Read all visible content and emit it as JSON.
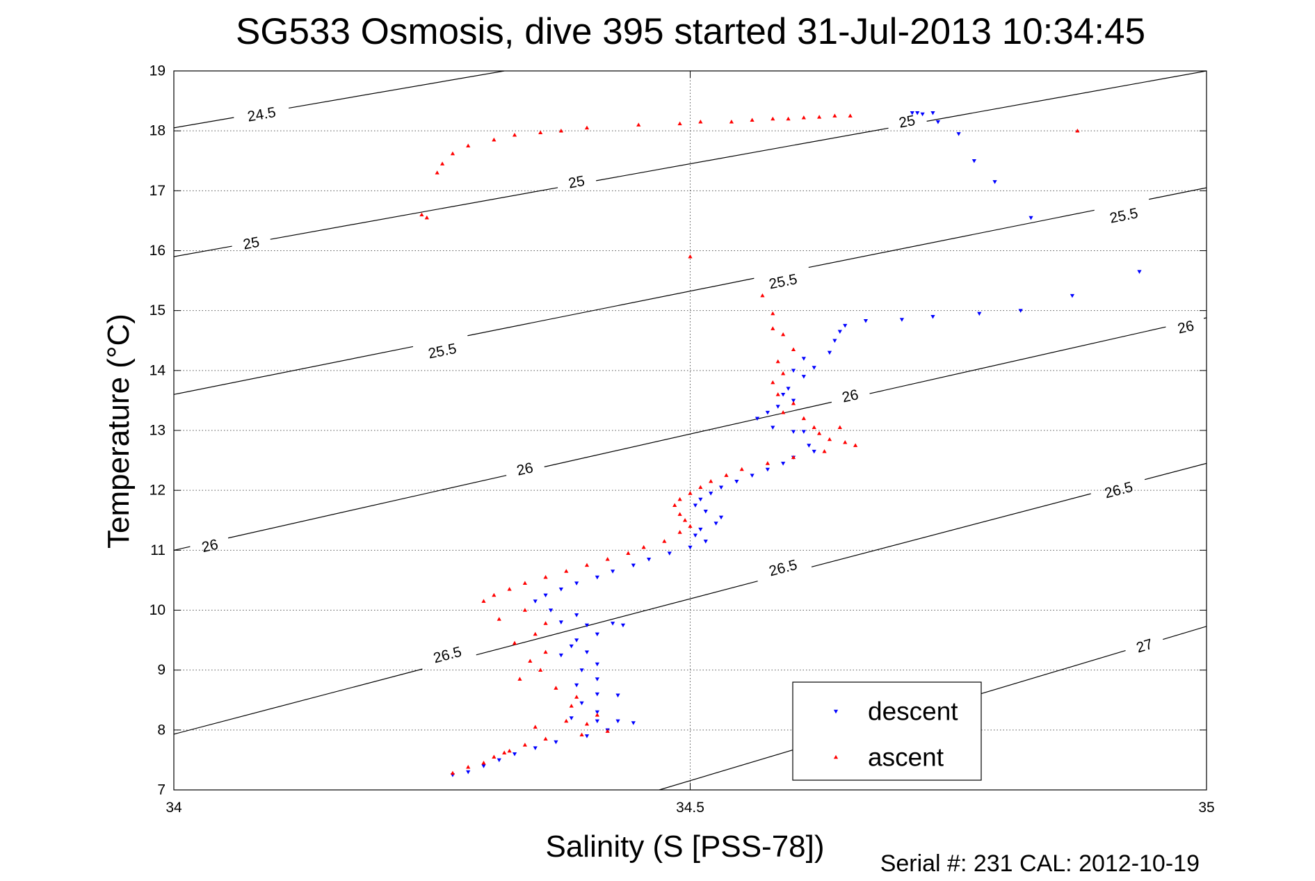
{
  "chart_data": {
    "type": "scatter",
    "title": "SG533 Osmosis, dive 395 started 31-Jul-2013 10:34:45",
    "xlabel": "Salinity (S [PSS-78])",
    "ylabel": "Temperature (°C)",
    "footer": "Serial #: 231  CAL: 2012-10-19",
    "xlim": [
      34,
      35
    ],
    "ylim": [
      7,
      19
    ],
    "x_ticks": [
      "34",
      "34.5",
      "35"
    ],
    "y_ticks": [
      "7",
      "8",
      "9",
      "10",
      "11",
      "12",
      "13",
      "14",
      "15",
      "16",
      "17",
      "18",
      "19"
    ],
    "grid": true,
    "legend_position": "bottom-right",
    "density_contours": [
      {
        "level": "24.5",
        "points": [
          [
            34.0,
            18.05
          ],
          [
            34.32,
            19.0
          ]
        ],
        "labels": [
          [
            34.085,
            18.27
          ]
        ]
      },
      {
        "level": "25",
        "points": [
          [
            34.0,
            15.9
          ],
          [
            35.0,
            19.0
          ]
        ],
        "labels": [
          [
            34.075,
            16.12
          ],
          [
            34.39,
            17.14
          ],
          [
            34.71,
            18.15
          ]
        ]
      },
      {
        "level": "25.5",
        "points": [
          [
            34.0,
            13.6
          ],
          [
            35.0,
            17.05
          ]
        ],
        "labels": [
          [
            34.26,
            14.32
          ],
          [
            34.59,
            15.48
          ],
          [
            34.92,
            16.58
          ]
        ]
      },
      {
        "level": "26",
        "points": [
          [
            34.0,
            11.0
          ],
          [
            35.0,
            14.88
          ]
        ],
        "labels": [
          [
            34.035,
            11.07
          ],
          [
            34.34,
            12.35
          ],
          [
            34.655,
            13.57
          ],
          [
            34.98,
            14.72
          ]
        ]
      },
      {
        "level": "26.5",
        "points": [
          [
            34.0,
            7.93
          ],
          [
            35.0,
            12.45
          ]
        ],
        "labels": [
          [
            34.265,
            9.25
          ],
          [
            34.59,
            10.7
          ],
          [
            34.915,
            12.0
          ]
        ]
      },
      {
        "level": "27",
        "points": [
          [
            34.47,
            7.0
          ],
          [
            35.0,
            9.73
          ]
        ],
        "labels": [
          [
            34.94,
            9.4
          ]
        ]
      }
    ],
    "series": [
      {
        "name": "descent",
        "marker": "triangle-down",
        "color": "#0000ff",
        "points": [
          [
            34.715,
            18.3
          ],
          [
            34.72,
            18.3
          ],
          [
            34.725,
            18.28
          ],
          [
            34.735,
            18.3
          ],
          [
            34.74,
            18.15
          ],
          [
            34.76,
            17.95
          ],
          [
            34.775,
            17.5
          ],
          [
            34.795,
            17.15
          ],
          [
            34.83,
            16.55
          ],
          [
            34.935,
            15.65
          ],
          [
            34.87,
            15.25
          ],
          [
            34.82,
            15.0
          ],
          [
            34.78,
            14.95
          ],
          [
            34.735,
            14.9
          ],
          [
            34.705,
            14.85
          ],
          [
            34.67,
            14.83
          ],
          [
            34.65,
            14.75
          ],
          [
            34.645,
            14.65
          ],
          [
            34.64,
            14.5
          ],
          [
            34.635,
            14.3
          ],
          [
            34.61,
            14.2
          ],
          [
            34.62,
            14.05
          ],
          [
            34.6,
            14.0
          ],
          [
            34.61,
            13.9
          ],
          [
            34.595,
            13.7
          ],
          [
            34.59,
            13.6
          ],
          [
            34.6,
            13.5
          ],
          [
            34.585,
            13.4
          ],
          [
            34.575,
            13.3
          ],
          [
            34.565,
            13.2
          ],
          [
            34.58,
            13.05
          ],
          [
            34.6,
            12.98
          ],
          [
            34.61,
            12.98
          ],
          [
            34.615,
            12.75
          ],
          [
            34.62,
            12.65
          ],
          [
            34.6,
            12.55
          ],
          [
            34.59,
            12.45
          ],
          [
            34.575,
            12.35
          ],
          [
            34.56,
            12.25
          ],
          [
            34.545,
            12.15
          ],
          [
            34.53,
            12.05
          ],
          [
            34.52,
            11.95
          ],
          [
            34.51,
            11.85
          ],
          [
            34.505,
            11.75
          ],
          [
            34.515,
            11.65
          ],
          [
            34.53,
            11.55
          ],
          [
            34.525,
            11.45
          ],
          [
            34.51,
            11.35
          ],
          [
            34.505,
            11.25
          ],
          [
            34.515,
            11.15
          ],
          [
            34.5,
            11.05
          ],
          [
            34.48,
            10.95
          ],
          [
            34.46,
            10.85
          ],
          [
            34.445,
            10.75
          ],
          [
            34.425,
            10.65
          ],
          [
            34.41,
            10.55
          ],
          [
            34.39,
            10.45
          ],
          [
            34.375,
            10.35
          ],
          [
            34.36,
            10.25
          ],
          [
            34.35,
            10.15
          ],
          [
            34.365,
            10.0
          ],
          [
            34.39,
            9.92
          ],
          [
            34.375,
            9.8
          ],
          [
            34.4,
            9.75
          ],
          [
            34.425,
            9.78
          ],
          [
            34.435,
            9.75
          ],
          [
            34.41,
            9.6
          ],
          [
            34.39,
            9.5
          ],
          [
            34.385,
            9.4
          ],
          [
            34.4,
            9.3
          ],
          [
            34.375,
            9.25
          ],
          [
            34.41,
            9.1
          ],
          [
            34.395,
            9.0
          ],
          [
            34.41,
            8.85
          ],
          [
            34.39,
            8.75
          ],
          [
            34.41,
            8.6
          ],
          [
            34.43,
            8.58
          ],
          [
            34.395,
            8.45
          ],
          [
            34.41,
            8.3
          ],
          [
            34.385,
            8.2
          ],
          [
            34.41,
            8.15
          ],
          [
            34.43,
            8.15
          ],
          [
            34.445,
            8.12
          ],
          [
            34.42,
            8.0
          ],
          [
            34.4,
            7.9
          ],
          [
            34.37,
            7.8
          ],
          [
            34.35,
            7.7
          ],
          [
            34.33,
            7.6
          ],
          [
            34.315,
            7.5
          ],
          [
            34.3,
            7.4
          ],
          [
            34.285,
            7.3
          ],
          [
            34.27,
            7.25
          ]
        ]
      },
      {
        "name": "ascent",
        "marker": "triangle-up",
        "color": "#ff0000",
        "points": [
          [
            34.655,
            18.25
          ],
          [
            34.64,
            18.25
          ],
          [
            34.625,
            18.23
          ],
          [
            34.61,
            18.22
          ],
          [
            34.595,
            18.2
          ],
          [
            34.58,
            18.2
          ],
          [
            34.56,
            18.18
          ],
          [
            34.54,
            18.15
          ],
          [
            34.51,
            18.15
          ],
          [
            34.49,
            18.12
          ],
          [
            34.45,
            18.1
          ],
          [
            34.4,
            18.05
          ],
          [
            34.375,
            18.0
          ],
          [
            34.355,
            17.97
          ],
          [
            34.33,
            17.93
          ],
          [
            34.31,
            17.85
          ],
          [
            34.285,
            17.75
          ],
          [
            34.27,
            17.62
          ],
          [
            34.26,
            17.45
          ],
          [
            34.255,
            17.3
          ],
          [
            34.245,
            16.55
          ],
          [
            34.24,
            16.6
          ],
          [
            34.5,
            15.9
          ],
          [
            34.57,
            15.25
          ],
          [
            34.58,
            14.95
          ],
          [
            34.58,
            14.7
          ],
          [
            34.59,
            14.6
          ],
          [
            34.6,
            14.35
          ],
          [
            34.585,
            14.15
          ],
          [
            34.59,
            13.95
          ],
          [
            34.58,
            13.8
          ],
          [
            34.585,
            13.6
          ],
          [
            34.6,
            13.45
          ],
          [
            34.59,
            13.3
          ],
          [
            34.61,
            13.2
          ],
          [
            34.62,
            13.05
          ],
          [
            34.625,
            12.95
          ],
          [
            34.635,
            12.85
          ],
          [
            34.65,
            12.8
          ],
          [
            34.66,
            12.75
          ],
          [
            34.63,
            12.65
          ],
          [
            34.6,
            12.55
          ],
          [
            34.575,
            12.45
          ],
          [
            34.55,
            12.35
          ],
          [
            34.535,
            12.25
          ],
          [
            34.52,
            12.15
          ],
          [
            34.51,
            12.05
          ],
          [
            34.5,
            11.95
          ],
          [
            34.49,
            11.85
          ],
          [
            34.485,
            11.75
          ],
          [
            34.49,
            11.6
          ],
          [
            34.495,
            11.5
          ],
          [
            34.5,
            11.4
          ],
          [
            34.49,
            11.3
          ],
          [
            34.475,
            11.15
          ],
          [
            34.455,
            11.05
          ],
          [
            34.44,
            10.95
          ],
          [
            34.42,
            10.85
          ],
          [
            34.4,
            10.75
          ],
          [
            34.38,
            10.65
          ],
          [
            34.36,
            10.55
          ],
          [
            34.34,
            10.45
          ],
          [
            34.325,
            10.35
          ],
          [
            34.31,
            10.25
          ],
          [
            34.3,
            10.15
          ],
          [
            34.34,
            10.0
          ],
          [
            34.315,
            9.85
          ],
          [
            34.36,
            9.78
          ],
          [
            34.35,
            9.6
          ],
          [
            34.33,
            9.45
          ],
          [
            34.36,
            9.3
          ],
          [
            34.345,
            9.15
          ],
          [
            34.355,
            9.0
          ],
          [
            34.335,
            8.85
          ],
          [
            34.37,
            8.7
          ],
          [
            34.39,
            8.55
          ],
          [
            34.385,
            8.4
          ],
          [
            34.41,
            8.25
          ],
          [
            34.38,
            8.15
          ],
          [
            34.4,
            8.1
          ],
          [
            34.35,
            8.05
          ],
          [
            34.36,
            7.85
          ],
          [
            34.34,
            7.75
          ],
          [
            34.325,
            7.65
          ],
          [
            34.31,
            7.55
          ],
          [
            34.3,
            7.45
          ],
          [
            34.285,
            7.38
          ],
          [
            34.27,
            7.28
          ],
          [
            34.32,
            7.62
          ],
          [
            34.395,
            7.92
          ],
          [
            34.42,
            7.98
          ],
          [
            34.645,
            13.05
          ],
          [
            34.875,
            18.0
          ]
        ]
      }
    ]
  }
}
